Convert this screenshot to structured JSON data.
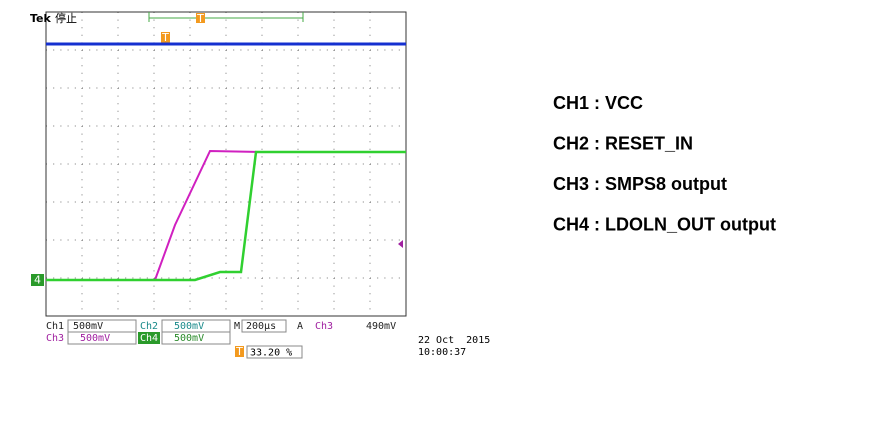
{
  "header": {
    "brand": "Tek",
    "state": "停止"
  },
  "markers": {
    "trigger_position": "T",
    "trigger_level": "T",
    "channel4": "4",
    "delay": "T"
  },
  "status_bar": {
    "row1": [
      "Ch1",
      "500mV",
      "Ch2",
      "500mV",
      "M",
      "200µs",
      "A",
      "Ch3",
      "490mV"
    ],
    "row2": [
      "Ch3",
      "500mV",
      "Ch4",
      "500mV"
    ],
    "delay": "33.20 %"
  },
  "timestamp": {
    "date": "22 Oct  2015",
    "time": "10:00:37"
  },
  "legend": [
    "CH1 : VCC",
    "CH2 : RESET_IN",
    "CH3 : SMPS8 output",
    "CH4 : LDOLN_OUT output"
  ]
}
